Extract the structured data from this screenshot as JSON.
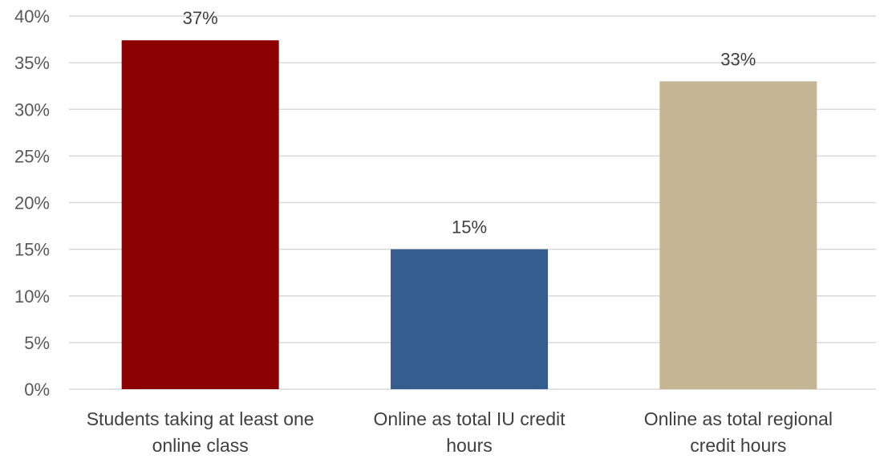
{
  "chart_data": {
    "type": "bar",
    "title": "",
    "xlabel": "",
    "ylabel": "",
    "categories": [
      [
        "Students taking at least one",
        "online class"
      ],
      [
        "Online as total IU credit",
        "hours"
      ],
      [
        "Online as total regional",
        "credit hours"
      ]
    ],
    "values": [
      37.4,
      15.0,
      33.0
    ],
    "data_labels": [
      "37%",
      "15%",
      "33%"
    ],
    "colors": [
      "#8b0000",
      "#355e8f",
      "#c4b595"
    ],
    "ylim": [
      0,
      40
    ],
    "yticks": [
      0,
      5,
      10,
      15,
      20,
      25,
      30,
      35,
      40
    ],
    "ytick_labels": [
      "0%",
      "5%",
      "10%",
      "15%",
      "20%",
      "25%",
      "30%",
      "35%",
      "40%"
    ],
    "grid": true,
    "legend": "none"
  }
}
